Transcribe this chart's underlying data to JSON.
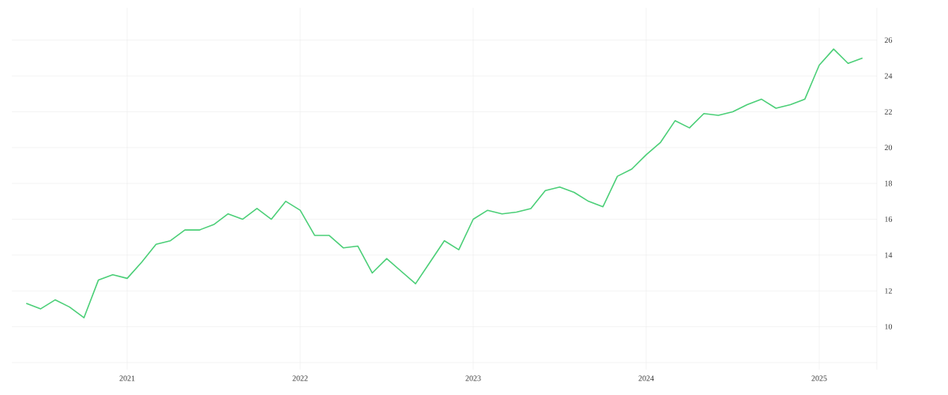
{
  "chart_data": {
    "type": "line",
    "x": [
      "2020-06",
      "2020-07",
      "2020-08",
      "2020-09",
      "2020-10",
      "2020-11",
      "2020-12",
      "2021-01",
      "2021-02",
      "2021-03",
      "2021-04",
      "2021-05",
      "2021-06",
      "2021-07",
      "2021-08",
      "2021-09",
      "2021-10",
      "2021-11",
      "2021-12",
      "2022-01",
      "2022-02",
      "2022-03",
      "2022-04",
      "2022-05",
      "2022-06",
      "2022-07",
      "2022-08",
      "2022-09",
      "2022-10",
      "2022-11",
      "2022-12",
      "2023-01",
      "2023-02",
      "2023-03",
      "2023-04",
      "2023-05",
      "2023-06",
      "2023-07",
      "2023-08",
      "2023-09",
      "2023-10",
      "2023-11",
      "2023-12",
      "2024-01",
      "2024-02",
      "2024-03",
      "2024-04",
      "2024-05",
      "2024-06",
      "2024-07",
      "2024-08",
      "2024-09",
      "2024-10",
      "2024-11",
      "2024-12",
      "2025-01",
      "2025-02",
      "2025-03",
      "2025-04"
    ],
    "series": [
      {
        "color": "#4ccf78",
        "values": [
          11.3,
          11.0,
          11.5,
          11.1,
          10.5,
          12.6,
          12.9,
          12.7,
          13.6,
          14.6,
          14.8,
          15.4,
          15.4,
          15.7,
          16.3,
          16.0,
          16.6,
          16.0,
          17.0,
          16.5,
          15.1,
          15.1,
          14.4,
          14.5,
          13.0,
          13.8,
          13.1,
          12.4,
          13.6,
          14.8,
          14.3,
          16.0,
          16.5,
          16.3,
          16.4,
          16.6,
          17.6,
          17.8,
          17.5,
          17.0,
          16.7,
          18.4,
          18.8,
          19.6,
          20.3,
          21.5,
          21.1,
          21.9,
          21.8,
          22.0,
          22.4,
          22.7,
          22.2,
          22.4,
          22.7,
          24.6,
          25.5,
          24.7,
          25.0
        ]
      }
    ],
    "xlim": [
      "2020-05",
      "2025-05"
    ],
    "xticks": [
      "2021",
      "2022",
      "2023",
      "2024",
      "2025"
    ],
    "ylim": [
      7.6,
      27.8
    ],
    "yticks": [
      {
        "value": 8,
        "label": null
      },
      10,
      12,
      14,
      16,
      18,
      20,
      22,
      24,
      26
    ],
    "grid": true,
    "marker": "none",
    "line_style": "solid",
    "legend": false
  }
}
